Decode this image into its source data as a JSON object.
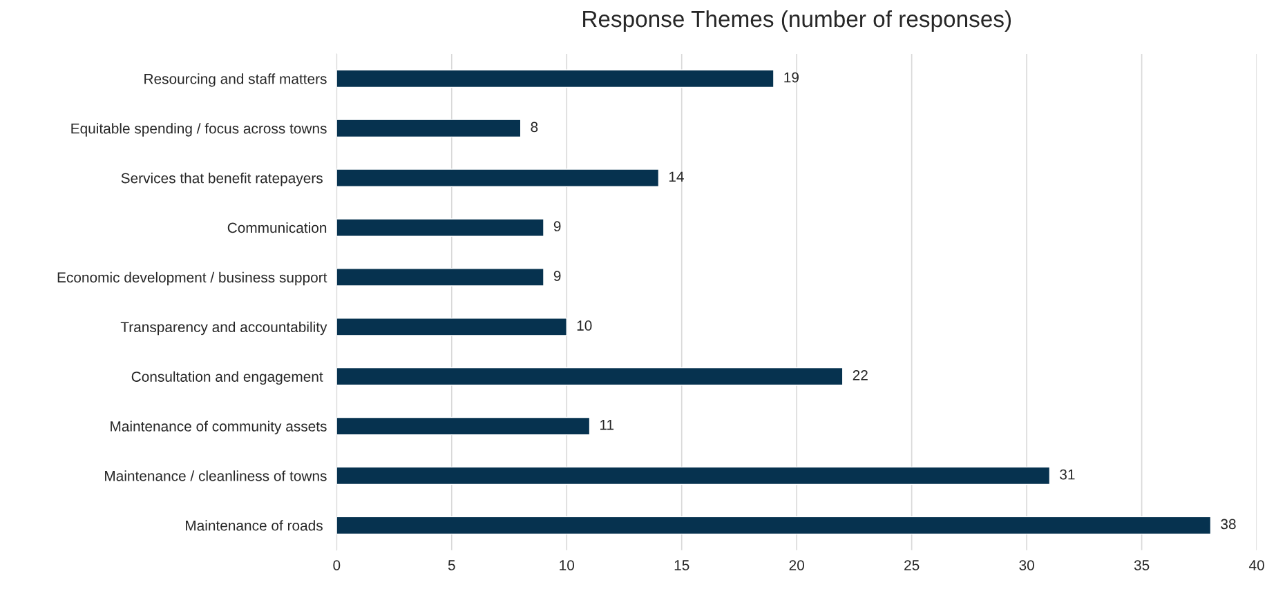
{
  "chart_data": {
    "type": "bar",
    "orientation": "horizontal",
    "title": "Response Themes (number of responses)",
    "categories": [
      "Resourcing and staff matters",
      "Equitable spending / focus across towns",
      "Services that benefit ratepayers ",
      "Communication",
      "Economic development / business support",
      "Transparency and accountability",
      "Consultation and engagement ",
      "Maintenance of community assets",
      "Maintenance / cleanliness of towns",
      "Maintenance of roads "
    ],
    "values": [
      19,
      8,
      14,
      9,
      9,
      10,
      22,
      11,
      31,
      38
    ],
    "color": "#06324f",
    "xlim": [
      0,
      40
    ],
    "xticks": [
      0,
      5,
      10,
      15,
      20,
      25,
      30,
      35,
      40
    ],
    "grid": "x",
    "data_labels": true
  }
}
